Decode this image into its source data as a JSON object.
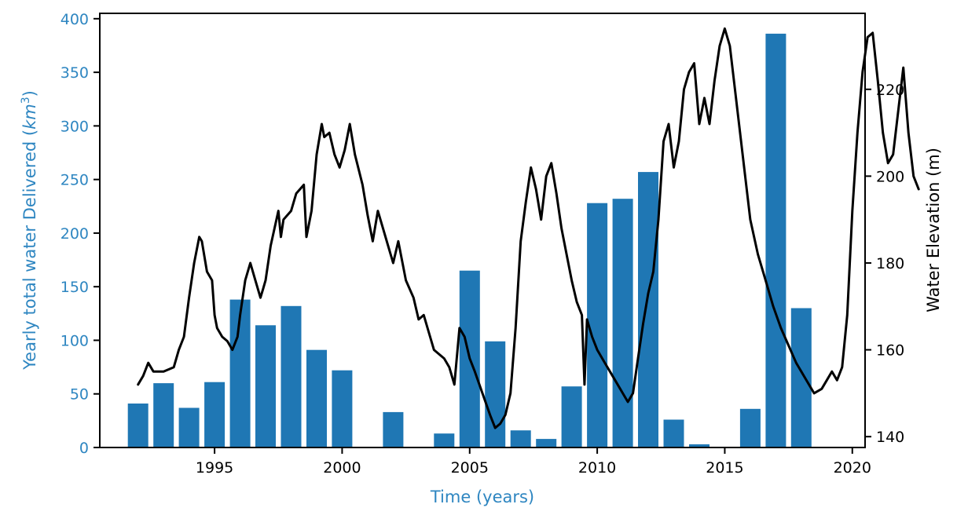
{
  "chart_data": {
    "type": "bar+line",
    "xlabel": "Time (years)",
    "ylabel_left": "Yearly total water Delivered (km³)",
    "ylabel_left_prefix": "Yearly total water Delivered (",
    "ylabel_left_unit": "km",
    "ylabel_left_sup": "3",
    "ylabel_left_suffix": ")",
    "ylabel_right": "Water Elevation (m)",
    "xlim": [
      1990.5,
      2020.5
    ],
    "ylim_left": [
      0,
      405
    ],
    "ylim_right": [
      137.5,
      237.5
    ],
    "xticks": [
      1995,
      2000,
      2005,
      2010,
      2015,
      2020
    ],
    "yticks_left": [
      0,
      50,
      100,
      150,
      200,
      250,
      300,
      350,
      400
    ],
    "yticks_right": [
      140,
      160,
      180,
      200,
      220
    ],
    "grid": false,
    "colors": {
      "bars": "#1f77b4",
      "left_axis": "#2e86c1",
      "line": "#000000"
    },
    "bars": [
      {
        "x": 1992,
        "value": 41
      },
      {
        "x": 1993,
        "value": 60
      },
      {
        "x": 1994,
        "value": 37
      },
      {
        "x": 1995,
        "value": 61
      },
      {
        "x": 1996,
        "value": 138
      },
      {
        "x": 1997,
        "value": 114
      },
      {
        "x": 1998,
        "value": 132
      },
      {
        "x": 1999,
        "value": 91
      },
      {
        "x": 2000,
        "value": 72
      },
      {
        "x": 2002,
        "value": 33
      },
      {
        "x": 2004,
        "value": 13
      },
      {
        "x": 2005,
        "value": 165
      },
      {
        "x": 2006,
        "value": 99
      },
      {
        "x": 2007,
        "value": 16
      },
      {
        "x": 2008,
        "value": 8
      },
      {
        "x": 2009,
        "value": 57
      },
      {
        "x": 2010,
        "value": 228
      },
      {
        "x": 2011,
        "value": 232
      },
      {
        "x": 2012,
        "value": 257
      },
      {
        "x": 2013,
        "value": 26
      },
      {
        "x": 2014,
        "value": 3
      },
      {
        "x": 2016,
        "value": 36
      },
      {
        "x": 2017,
        "value": 386
      },
      {
        "x": 2018,
        "value": 130
      }
    ],
    "elevation": [
      [
        1992.0,
        152
      ],
      [
        1992.2,
        154
      ],
      [
        1992.4,
        157
      ],
      [
        1992.6,
        155
      ],
      [
        1993.0,
        155
      ],
      [
        1993.4,
        156
      ],
      [
        1993.6,
        160
      ],
      [
        1993.8,
        163
      ],
      [
        1994.0,
        172
      ],
      [
        1994.2,
        180
      ],
      [
        1994.4,
        186
      ],
      [
        1994.5,
        185
      ],
      [
        1994.7,
        178
      ],
      [
        1994.9,
        176
      ],
      [
        1995.0,
        168
      ],
      [
        1995.1,
        165
      ],
      [
        1995.3,
        163
      ],
      [
        1995.5,
        162
      ],
      [
        1995.7,
        160
      ],
      [
        1995.9,
        163
      ],
      [
        1996.0,
        168
      ],
      [
        1996.2,
        176
      ],
      [
        1996.4,
        180
      ],
      [
        1996.6,
        176
      ],
      [
        1996.8,
        172
      ],
      [
        1996.9,
        174
      ],
      [
        1997.0,
        176
      ],
      [
        1997.2,
        184
      ],
      [
        1997.5,
        192
      ],
      [
        1997.6,
        186
      ],
      [
        1997.7,
        190
      ],
      [
        1998.0,
        192
      ],
      [
        1998.2,
        196
      ],
      [
        1998.5,
        198
      ],
      [
        1998.6,
        186
      ],
      [
        1998.8,
        192
      ],
      [
        1999.0,
        205
      ],
      [
        1999.2,
        212
      ],
      [
        1999.3,
        209
      ],
      [
        1999.5,
        210
      ],
      [
        1999.7,
        205
      ],
      [
        1999.9,
        202
      ],
      [
        2000.1,
        206
      ],
      [
        2000.3,
        212
      ],
      [
        2000.5,
        205
      ],
      [
        2000.8,
        198
      ],
      [
        2001.0,
        191
      ],
      [
        2001.2,
        185
      ],
      [
        2001.4,
        192
      ],
      [
        2001.6,
        188
      ],
      [
        2001.8,
        184
      ],
      [
        2002.0,
        180
      ],
      [
        2002.2,
        185
      ],
      [
        2002.5,
        176
      ],
      [
        2002.8,
        172
      ],
      [
        2003.0,
        167
      ],
      [
        2003.2,
        168
      ],
      [
        2003.4,
        164
      ],
      [
        2003.6,
        160
      ],
      [
        2003.8,
        159
      ],
      [
        2004.0,
        158
      ],
      [
        2004.2,
        156
      ],
      [
        2004.4,
        152
      ],
      [
        2004.6,
        165
      ],
      [
        2004.8,
        163
      ],
      [
        2005.0,
        158
      ],
      [
        2005.2,
        155
      ],
      [
        2005.5,
        150
      ],
      [
        2005.8,
        145
      ],
      [
        2006.0,
        142
      ],
      [
        2006.2,
        143
      ],
      [
        2006.4,
        145
      ],
      [
        2006.6,
        150
      ],
      [
        2006.8,
        165
      ],
      [
        2007.0,
        185
      ],
      [
        2007.2,
        194
      ],
      [
        2007.4,
        202
      ],
      [
        2007.6,
        197
      ],
      [
        2007.8,
        190
      ],
      [
        2008.0,
        200
      ],
      [
        2008.2,
        203
      ],
      [
        2008.4,
        196
      ],
      [
        2008.6,
        188
      ],
      [
        2008.8,
        182
      ],
      [
        2009.0,
        176
      ],
      [
        2009.2,
        171
      ],
      [
        2009.4,
        168
      ],
      [
        2009.5,
        152
      ],
      [
        2009.6,
        167
      ],
      [
        2009.8,
        163
      ],
      [
        2010.0,
        160
      ],
      [
        2010.3,
        157
      ],
      [
        2010.6,
        154
      ],
      [
        2010.8,
        152
      ],
      [
        2011.0,
        150
      ],
      [
        2011.2,
        148
      ],
      [
        2011.4,
        150
      ],
      [
        2011.6,
        158
      ],
      [
        2011.8,
        166
      ],
      [
        2012.0,
        173
      ],
      [
        2012.2,
        178
      ],
      [
        2012.4,
        190
      ],
      [
        2012.6,
        208
      ],
      [
        2012.8,
        212
      ],
      [
        2013.0,
        202
      ],
      [
        2013.2,
        208
      ],
      [
        2013.4,
        220
      ],
      [
        2013.6,
        224
      ],
      [
        2013.8,
        226
      ],
      [
        2014.0,
        212
      ],
      [
        2014.2,
        218
      ],
      [
        2014.4,
        212
      ],
      [
        2014.6,
        222
      ],
      [
        2014.8,
        230
      ],
      [
        2015.0,
        234
      ],
      [
        2015.2,
        230
      ],
      [
        2015.4,
        220
      ],
      [
        2015.6,
        210
      ],
      [
        2015.8,
        200
      ],
      [
        2016.0,
        190
      ],
      [
        2016.3,
        182
      ],
      [
        2016.6,
        176
      ],
      [
        2016.9,
        170
      ],
      [
        2017.2,
        165
      ],
      [
        2017.5,
        161
      ],
      [
        2017.8,
        157
      ],
      [
        2018.0,
        155
      ],
      [
        2018.2,
        153
      ],
      [
        2018.5,
        150
      ],
      [
        2018.8,
        151
      ],
      [
        2019.0,
        153
      ],
      [
        2019.2,
        155
      ],
      [
        2019.4,
        153
      ],
      [
        2019.6,
        156
      ],
      [
        2019.8,
        168
      ],
      [
        2020.0,
        192
      ],
      [
        2020.2,
        210
      ],
      [
        2020.4,
        224
      ],
      [
        2020.6,
        232
      ],
      [
        2020.8,
        233
      ],
      [
        2021.0,
        222
      ],
      [
        2021.2,
        210
      ],
      [
        2021.4,
        203
      ],
      [
        2021.6,
        205
      ],
      [
        2021.8,
        215
      ],
      [
        2022.0,
        225
      ],
      [
        2022.2,
        210
      ],
      [
        2022.4,
        200
      ],
      [
        2022.6,
        197
      ]
    ]
  }
}
